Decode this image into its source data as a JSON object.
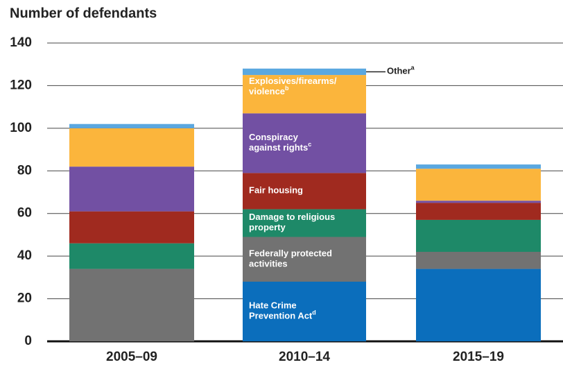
{
  "chart_data": {
    "type": "stacked-bar",
    "y_axis_label": "Number of defendants",
    "categories": [
      "2005–09",
      "2010–14",
      "2015–19"
    ],
    "ylim": [
      0,
      140
    ],
    "yticks": [
      0,
      20,
      40,
      60,
      80,
      100,
      120,
      140
    ],
    "grid": true,
    "series": [
      {
        "name": [
          "Hate Crime",
          "Prevention Act"
        ],
        "note": "d",
        "color": "#0b6ebc",
        "values": [
          0,
          28,
          34
        ]
      },
      {
        "name": [
          "Federally protected",
          "activities"
        ],
        "color": "#727272",
        "values": [
          34,
          21,
          8
        ]
      },
      {
        "name": [
          "Damage to religious",
          "property"
        ],
        "color": "#1e8968",
        "values": [
          12,
          13,
          15
        ]
      },
      {
        "name": [
          "Fair housing"
        ],
        "color": "#a02a1f",
        "values": [
          15,
          17,
          8
        ]
      },
      {
        "name": [
          "Conspiracy",
          "against rights"
        ],
        "note": "c",
        "color": "#7250a3",
        "values": [
          21,
          28,
          1
        ]
      },
      {
        "name": [
          "Explosives/firearms/",
          "violence"
        ],
        "note": "b",
        "color": "#fbb53c",
        "values": [
          18,
          18,
          15
        ]
      },
      {
        "name": [
          "Other"
        ],
        "note": "a",
        "color": "#5ba8e0",
        "values": [
          2,
          3,
          2
        ]
      }
    ]
  }
}
